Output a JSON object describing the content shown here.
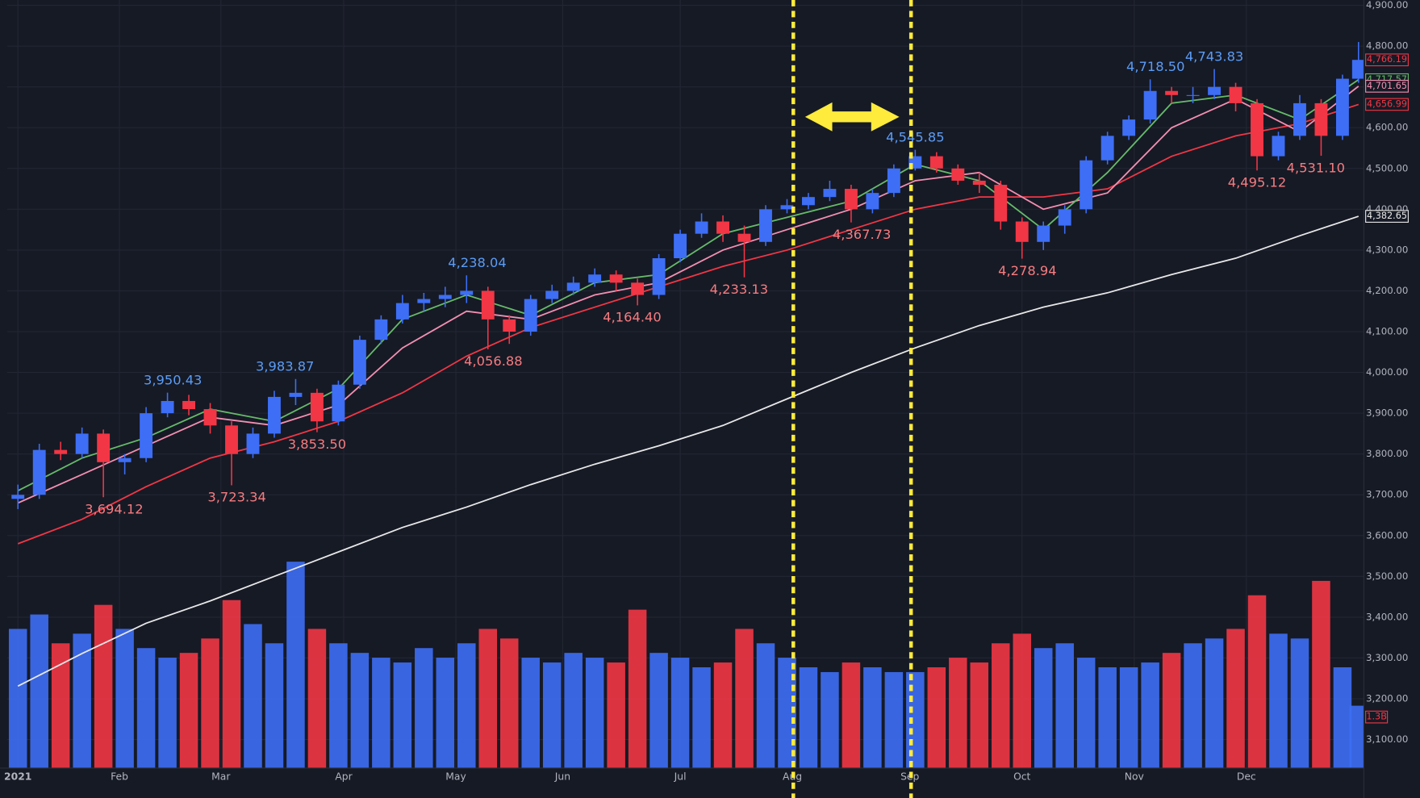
{
  "chart_data": {
    "type": "candlestick",
    "x": [
      0,
      4,
      8,
      12,
      16,
      20,
      24,
      28,
      32,
      36,
      40,
      44,
      48,
      52,
      56,
      60,
      64,
      68,
      72,
      76,
      80,
      84,
      88,
      92,
      96,
      100,
      104,
      108,
      112,
      116,
      120,
      124,
      128,
      132,
      136,
      140,
      144,
      148,
      152,
      156,
      160,
      164,
      168,
      172,
      176,
      180,
      184,
      188,
      192,
      196,
      200,
      204,
      208,
      212,
      216,
      220,
      224,
      228,
      232,
      236,
      240,
      244,
      248,
      251
    ],
    "open": [
      3690,
      3700,
      3810,
      3800,
      3850,
      3780,
      3790,
      3900,
      3930,
      3910,
      3870,
      3800,
      3850,
      3940,
      3950,
      3880,
      3970,
      4080,
      4130,
      4170,
      4180,
      4190,
      4200,
      4130,
      4100,
      4180,
      4200,
      4220,
      4240,
      4220,
      4190,
      4280,
      4340,
      4370,
      4340,
      4320,
      4400,
      4410,
      4430,
      4450,
      4400,
      4440,
      4500,
      4530,
      4500,
      4470,
      4460,
      4370,
      4320,
      4360,
      4400,
      4520,
      4580,
      4620,
      4690,
      4680,
      4680,
      4700,
      4660,
      4530,
      4580,
      4660,
      4580,
      4720
    ],
    "high": [
      3725,
      3825,
      3830,
      3865,
      3860,
      3800,
      3915,
      3950.43,
      3945,
      3925,
      3880,
      3865,
      3955,
      3983.87,
      3960,
      3980,
      4090,
      4140,
      4190,
      4195,
      4210,
      4238.04,
      4210,
      4140,
      4190,
      4215,
      4235,
      4255,
      4250,
      4230,
      4290,
      4350,
      4390,
      4385,
      4360,
      4410,
      4425,
      4440,
      4470,
      4460,
      4450,
      4510,
      4545.85,
      4540,
      4510,
      4490,
      4470,
      4380,
      4370,
      4410,
      4530,
      4590,
      4630,
      4718.5,
      4700,
      4700,
      4743.83,
      4710,
      4670,
      4590,
      4680,
      4670,
      4730,
      4810
    ],
    "low": [
      3665,
      3690,
      3785,
      3790,
      3694.12,
      3750,
      3780,
      3890,
      3895,
      3850,
      3723.34,
      3790,
      3840,
      3920,
      3853.5,
      3870,
      3960,
      4070,
      4120,
      4150,
      4160,
      4170,
      4056.88,
      4070,
      4090,
      4170,
      4190,
      4210,
      4200,
      4164.4,
      4180,
      4270,
      4330,
      4320,
      4233.13,
      4310,
      4390,
      4400,
      4420,
      4367.73,
      4390,
      4430,
      4495,
      4490,
      4460,
      4440,
      4350,
      4278.94,
      4300,
      4340,
      4390,
      4510,
      4570,
      4610,
      4660,
      4660,
      4670,
      4640,
      4495.12,
      4520,
      4570,
      4531.1,
      4570,
      4710
    ],
    "close": [
      3700,
      3810,
      3800,
      3850,
      3780,
      3790,
      3900,
      3930,
      3910,
      3870,
      3800,
      3850,
      3940,
      3950,
      3880,
      3970,
      4080,
      4130,
      4170,
      4180,
      4190,
      4200,
      4130,
      4100,
      4180,
      4200,
      4220,
      4240,
      4220,
      4190,
      4280,
      4340,
      4370,
      4340,
      4320,
      4400,
      4410,
      4430,
      4450,
      4400,
      4440,
      4500,
      4530,
      4500,
      4470,
      4460,
      4370,
      4320,
      4360,
      4400,
      4520,
      4580,
      4620,
      4690,
      4680,
      4680,
      4700,
      4660,
      4530,
      4580,
      4660,
      4580,
      4720,
      4766.19
    ],
    "up_color": "#3d6ef5",
    "down_color": "#f23645",
    "xlim": [
      -2,
      252
    ],
    "ylim": [
      3030,
      4913
    ],
    "grid": true,
    "yticks": [
      {
        "value": 3100,
        "label": "3,100.00"
      },
      {
        "value": 3200,
        "label": "3,200.00"
      },
      {
        "value": 3300,
        "label": "3,300.00"
      },
      {
        "value": 3400,
        "label": "3,400.00"
      },
      {
        "value": 3500,
        "label": "3,500.00"
      },
      {
        "value": 3600,
        "label": "3,600.00"
      },
      {
        "value": 3700,
        "label": "3,700.00"
      },
      {
        "value": 3800,
        "label": "3,800.00"
      },
      {
        "value": 3900,
        "label": "3,900.00"
      },
      {
        "value": 4000,
        "label": "4,000.00"
      },
      {
        "value": 4100,
        "label": "4,100.00"
      },
      {
        "value": 4200,
        "label": "4,200.00"
      },
      {
        "value": 4300,
        "label": "4,300.00"
      },
      {
        "value": 4400,
        "label": "4,400.00"
      },
      {
        "value": 4500,
        "label": "4,500.00"
      },
      {
        "value": 4600,
        "label": "4,600.00"
      },
      {
        "value": 4700,
        "label": "4,700.00"
      },
      {
        "value": 4800,
        "label": "4,800.00"
      },
      {
        "value": 4900,
        "label": "4,900.00"
      }
    ],
    "xticks": [
      {
        "value": 0,
        "label": "2021"
      },
      {
        "value": 19,
        "label": "Feb"
      },
      {
        "value": 38,
        "label": "Mar"
      },
      {
        "value": 61,
        "label": "Apr"
      },
      {
        "value": 82,
        "label": "May"
      },
      {
        "value": 102,
        "label": "Jun"
      },
      {
        "value": 124,
        "label": "Jul"
      },
      {
        "value": 145,
        "label": "Aug"
      },
      {
        "value": 167,
        "label": "Sep"
      },
      {
        "value": 188,
        "label": "Oct"
      },
      {
        "value": 209,
        "label": "Nov"
      },
      {
        "value": 230,
        "label": "Dec"
      }
    ],
    "volume": {
      "values": [
        2.9,
        3.2,
        2.6,
        2.8,
        3.4,
        2.9,
        2.5,
        2.3,
        2.4,
        2.7,
        3.5,
        3.0,
        2.6,
        4.3,
        2.9,
        2.6,
        2.4,
        2.3,
        2.2,
        2.5,
        2.3,
        2.6,
        2.9,
        2.7,
        2.3,
        2.2,
        2.4,
        2.3,
        2.2,
        3.3,
        2.4,
        2.3,
        2.1,
        2.2,
        2.9,
        2.6,
        2.3,
        2.1,
        2.0,
        2.2,
        2.1,
        2.0,
        2.0,
        2.1,
        2.3,
        2.2,
        2.6,
        2.8,
        2.5,
        2.6,
        2.3,
        2.1,
        2.1,
        2.2,
        2.4,
        2.6,
        2.7,
        2.9,
        3.6,
        2.8,
        2.7,
        3.9,
        2.1,
        1.3
      ],
      "ylim": [
        0,
        16
      ],
      "last_label": "1.3B"
    },
    "ma_x": [
      0,
      12,
      24,
      36,
      48,
      60,
      72,
      84,
      96,
      108,
      120,
      132,
      144,
      156,
      168,
      180,
      192,
      204,
      216,
      228,
      240,
      251
    ],
    "ma": [
      {
        "color": "#e8e8e8",
        "values": [
          3231,
          3311,
          3385,
          3440,
          3500,
          3560,
          3620,
          3670,
          3725,
          3775,
          3820,
          3870,
          3935,
          4000,
          4060,
          4115,
          4160,
          4195,
          4240,
          4280,
          4335,
          4382.65
        ]
      },
      {
        "color": "#f23645",
        "values": [
          3580,
          3640,
          3720,
          3790,
          3830,
          3880,
          3950,
          4040,
          4110,
          4160,
          4210,
          4260,
          4300,
          4350,
          4400,
          4430,
          4430,
          4450,
          4530,
          4580,
          4610,
          4656.99
        ]
      },
      {
        "color": "#f48fb1",
        "values": [
          3680,
          3750,
          3820,
          3890,
          3870,
          3920,
          4060,
          4150,
          4130,
          4190,
          4220,
          4300,
          4350,
          4400,
          4470,
          4490,
          4400,
          4440,
          4600,
          4670,
          4590,
          4701.65
        ]
      },
      {
        "color": "#66bb6a",
        "values": [
          3710,
          3790,
          3840,
          3910,
          3880,
          3960,
          4130,
          4190,
          4140,
          4220,
          4240,
          4340,
          4380,
          4420,
          4510,
          4470,
          4350,
          4490,
          4660,
          4680,
          4620,
          4717.57
        ]
      }
    ],
    "price_labels": [
      {
        "value": 4766.19,
        "label": "4,766.19",
        "color": "#f23645"
      },
      {
        "value": 4717.57,
        "label": "4,717.57",
        "color": "#66bb6a"
      },
      {
        "value": 4701.65,
        "label": "4,701.65",
        "color": "#f48fb1"
      },
      {
        "value": 4656.99,
        "label": "4,656.99",
        "color": "#f23645"
      },
      {
        "value": 4382.65,
        "label": "4,382.65",
        "color": "#e8e8e8"
      }
    ],
    "high_label_color": "#5b9cf6",
    "high_labels": [
      {
        "x": 29,
        "y": 3950.43,
        "label": "3,950.43"
      },
      {
        "x": 50,
        "y": 3983.87,
        "label": "3,983.87"
      },
      {
        "x": 86,
        "y": 4238.04,
        "label": "4,238.04"
      },
      {
        "x": 168,
        "y": 4545.85,
        "label": "4,545.85"
      },
      {
        "x": 213,
        "y": 4718.5,
        "label": "4,718.50"
      },
      {
        "x": 224,
        "y": 4743.83,
        "label": "4,743.83"
      }
    ],
    "low_label_color": "#f77c80",
    "low_labels": [
      {
        "x": 18,
        "y": 3694.12,
        "label": "3,694.12"
      },
      {
        "x": 41,
        "y": 3723.34,
        "label": "3,723.34"
      },
      {
        "x": 56,
        "y": 3853.5,
        "label": "3,853.50"
      },
      {
        "x": 89,
        "y": 4056.88,
        "label": "4,056.88"
      },
      {
        "x": 115,
        "y": 4164.4,
        "label": "4,164.40"
      },
      {
        "x": 135,
        "y": 4233.13,
        "label": "4,233.13"
      },
      {
        "x": 158,
        "y": 4367.73,
        "label": "4,367.73"
      },
      {
        "x": 189,
        "y": 4278.94,
        "label": "4,278.94"
      },
      {
        "x": 232,
        "y": 4495.12,
        "label": "4,495.12"
      },
      {
        "x": 243,
        "y": 4531.1,
        "label": "4,531.10"
      }
    ]
  }
}
